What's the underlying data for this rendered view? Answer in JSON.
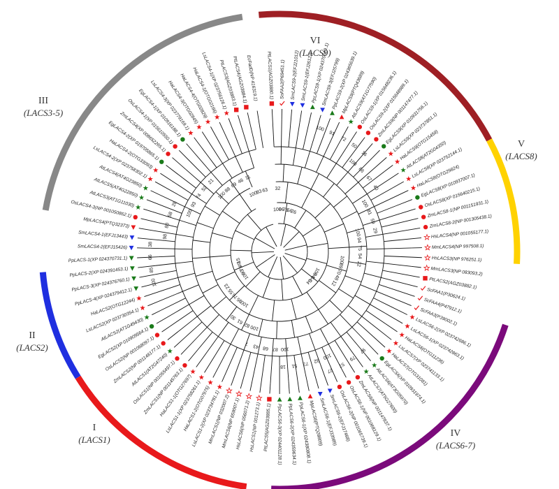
{
  "clades": [
    {
      "id": "I",
      "roman": "I",
      "name": "(LACS1)",
      "color": "#e8191b"
    },
    {
      "id": "II",
      "roman": "II",
      "name": "(LACS2)",
      "color": "#1f2fe0"
    },
    {
      "id": "III",
      "roman": "III",
      "name": "(LACS3-5)",
      "color": "#888888"
    },
    {
      "id": "IV",
      "roman": "IV",
      "name": "(LACS6-7)",
      "color": "#7b0a7b"
    },
    {
      "id": "V",
      "roman": "V",
      "name": "(LACS8)",
      "color": "#ffd200"
    },
    {
      "id": "VI",
      "roman": "VI",
      "name": "(LACS9)",
      "color": "#9e1f24"
    }
  ],
  "leaves": [
    {
      "label": "PtLACS1(AGZ03880.1)",
      "marker": "square",
      "color": "#e8191b"
    },
    {
      "label": "SoFAA2(P69451.1)",
      "marker": "check",
      "color": "#e8191b"
    },
    {
      "label": "SmLACS9-2(EFJ21012)",
      "marker": "triangle-down",
      "color": "#1f2fe0"
    },
    {
      "label": "SmLACS9-1(EFJ26122)",
      "marker": "triangle-down",
      "color": "#1f2fe0"
    },
    {
      "label": "PpLACS9-1(XP 024370619.1)",
      "marker": "triangle-up",
      "color": "#1a7a1a"
    },
    {
      "label": "SmLACS9-3(EFJ25799)",
      "marker": "triangle-down",
      "color": "#1f2fe0"
    },
    {
      "label": "PpLACS9-2(XP 024365639.1)",
      "marker": "triangle-up",
      "color": "#1a7a1a"
    },
    {
      "label": "MpLACS9(PTQ43689)",
      "marker": "triangle-up",
      "color": "#e8191b"
    },
    {
      "label": "AtLACS9(AT1G77590)",
      "marker": "star",
      "color": "#1a7a1a"
    },
    {
      "label": "OsLACS9-1(XP 015648236.1)",
      "marker": "circle",
      "color": "#e8191b"
    },
    {
      "label": "OsLACS9-2(XP 015648989.1)",
      "marker": "circle",
      "color": "#e8191b"
    },
    {
      "label": "ZmLACS9(NP 001147477.1)",
      "marker": "circle",
      "color": "#e8191b"
    },
    {
      "label": "EgLACS9(XP 010931756.1)",
      "marker": "circle",
      "color": "#1a7a1a"
    },
    {
      "label": "LsLACS9(XP 023737851.1)",
      "marker": "star",
      "color": "#e8191b"
    },
    {
      "label": "HaLACS9(OTG15459)",
      "marker": "star",
      "color": "#e8191b"
    },
    {
      "label": "AtLACS8(AT2G04350)",
      "marker": "star",
      "color": "#1a7a1a"
    },
    {
      "label": "LsLACS8(XP 023752144.1)",
      "marker": "star",
      "color": "#e8191b"
    },
    {
      "label": "HaLACS8(OTG29824)",
      "marker": "star",
      "color": "#e8191b"
    },
    {
      "label": "EgLACS8(XP 010937007.1)",
      "marker": "circle",
      "color": "#1a7a1a"
    },
    {
      "label": "OsLACS8(XP 015640215.1)",
      "marker": "circle",
      "color": "#e8191b"
    },
    {
      "label": "ZmLACS8-1(NP 001151931.1)",
      "marker": "circle",
      "color": "#e8191b"
    },
    {
      "label": "ZmLACS8-2(NP 001305438.1)",
      "marker": "circle",
      "color": "#e8191b"
    },
    {
      "label": "HsLACS4(NP 001055177.1)",
      "marker": "star-open",
      "color": "#e8191b"
    },
    {
      "label": "MmLACS4(NP 997508.1)",
      "marker": "star-open",
      "color": "#e8191b"
    },
    {
      "label": "HsLACS3(NP 976251.1)",
      "marker": "star-open",
      "color": "#e8191b"
    },
    {
      "label": "MmLACS3(NP 083093.2)",
      "marker": "star-open",
      "color": "#e8191b"
    },
    {
      "label": "PtLACS2(AGZ03882.1)",
      "marker": "square",
      "color": "#e8191b"
    },
    {
      "label": "ScFAA1(P30624.1)",
      "marker": "check",
      "color": "#e8191b"
    },
    {
      "label": "ScFAA4(P47912.1)",
      "marker": "check",
      "color": "#e8191b"
    },
    {
      "label": "ScFAA3(P39002.1)",
      "marker": "check",
      "color": "#e8191b"
    },
    {
      "label": "LsLACS6-2(XP 023742686.1)",
      "marker": "star",
      "color": "#e8191b"
    },
    {
      "label": "LsLACS6-1(XP 023742863.1)",
      "marker": "star",
      "color": "#e8191b"
    },
    {
      "label": "HaLACS6(OTG11236)",
      "marker": "star",
      "color": "#e8191b"
    },
    {
      "label": "LsLACS7(XP 023741133.1)",
      "marker": "star",
      "color": "#e8191b"
    },
    {
      "label": "HaLACS7(OTG31081)",
      "marker": "star",
      "color": "#e8191b"
    },
    {
      "label": "EgLACS6(XP 010931974.1)",
      "marker": "circle",
      "color": "#1a7a1a"
    },
    {
      "label": "AtLACS6(AT3G05970)",
      "marker": "star",
      "color": "#1a7a1a"
    },
    {
      "label": "AtLACS7(AT5G27600)",
      "marker": "star",
      "color": "#1a7a1a"
    },
    {
      "label": "ZmLACS6(NP 001147837.1)",
      "marker": "circle",
      "color": "#e8191b"
    },
    {
      "label": "OsLACS6-1(NP 001068129.1)",
      "marker": "circle",
      "color": "#e8191b"
    },
    {
      "label": "OsLACS6-2(NP 001065739.1)",
      "marker": "circle",
      "color": "#e8191b"
    },
    {
      "label": "SmLACS6-2(EFJ17468)",
      "marker": "triangle-down",
      "color": "#1f2fe0"
    },
    {
      "label": "SmLACS6-1(EFJ33989)",
      "marker": "triangle-down",
      "color": "#1f2fe0"
    },
    {
      "label": "MpLACS6(PTQ28809)",
      "marker": "triangle-up",
      "color": "#e8191b"
    },
    {
      "label": "PpLACS6-1(XP 024380808.1)",
      "marker": "triangle-up",
      "color": "#1a7a1a"
    },
    {
      "label": "PpLACS6-2(XP 024359634.1)",
      "marker": "triangle-up",
      "color": "#1a7a1a"
    },
    {
      "label": "PpLACS6-3(XP 024401128.1)",
      "marker": "triangle-up",
      "color": "#1a7a1a"
    },
    {
      "label": "PtLACS5(AGZ03885.1)",
      "marker": "square",
      "color": "#e8191b"
    },
    {
      "label": "HsLACS1(NP 001273.1)",
      "marker": "star-open",
      "color": "#e8191b"
    },
    {
      "label": "HsLACS6(NP 056071.2)",
      "marker": "star-open",
      "color": "#e8191b"
    },
    {
      "label": "MmLACS6(NP 659007.1)",
      "marker": "star-open",
      "color": "#e8191b"
    },
    {
      "label": "MmLACS1(NP 032007.2)",
      "marker": "star-open",
      "color": "#e8191b"
    },
    {
      "label": "LsLACS1-2(XP 023734781.1)",
      "marker": "star",
      "color": "#e8191b"
    },
    {
      "label": "HaLACS1-2(OTG07975)",
      "marker": "star",
      "color": "#e8191b"
    },
    {
      "label": "LsLACS1-1(XP 023758261.1)",
      "marker": "star",
      "color": "#e8191b"
    },
    {
      "label": "HaLACS1-1(OTG27697)",
      "marker": "star",
      "color": "#e8191b"
    },
    {
      "label": "ZmLACS1(NP 001145763.1)",
      "marker": "circle",
      "color": "#e8191b"
    },
    {
      "label": "OsLACS1(NP 001055497.1)",
      "marker": "circle",
      "color": "#e8191b"
    },
    {
      "label": "AtLACS1(AT2G47240)",
      "marker": "star",
      "color": "#1a7a1a"
    },
    {
      "label": "ZmLACS2(NP 001148177.1)",
      "marker": "circle",
      "color": "#e8191b"
    },
    {
      "label": "OsLACS2(NP 001068097.1)",
      "marker": "circle",
      "color": "#e8191b"
    },
    {
      "label": "EgLACS2(XP 010909564.1)",
      "marker": "circle",
      "color": "#1a7a1a"
    },
    {
      "label": "AtLACS2(AT1G49430)",
      "marker": "star",
      "color": "#1a7a1a"
    },
    {
      "label": "LsLACS2(XP 023730354.1)",
      "marker": "star",
      "color": "#e8191b"
    },
    {
      "label": "HaLACS2(OTG12244)",
      "marker": "star",
      "color": "#e8191b"
    },
    {
      "label": "PpLACS-4(XP 024379412.1)",
      "marker": "triangle-down",
      "color": "#1a7a1a"
    },
    {
      "label": "PpLACS-3(XP 024376760.1)",
      "marker": "triangle-down",
      "color": "#1a7a1a"
    },
    {
      "label": "PpLACS-2(XP 024391453.1)",
      "marker": "triangle-down",
      "color": "#1a7a1a"
    },
    {
      "label": "PpLACS-1(XP 024370731.1)",
      "marker": "triangle-down",
      "color": "#1a7a1a"
    },
    {
      "label": "SmLACS4-2(EFJ15426)",
      "marker": "triangle-down",
      "color": "#1f2fe0"
    },
    {
      "label": "SmLACS4-1(EFJ13443)",
      "marker": "triangle-down",
      "color": "#1f2fe0"
    },
    {
      "label": "MpLACS4(PTQ32373)",
      "marker": "triangle-down",
      "color": "#e8191b"
    },
    {
      "label": "OsLACS4-3(NP 001050862.1)",
      "marker": "circle",
      "color": "#e8191b"
    },
    {
      "label": "AtLACS3(AT1G11030)",
      "marker": "star",
      "color": "#1a7a1a"
    },
    {
      "label": "AtLACS5(AT4G22850)",
      "marker": "star",
      "color": "#1a7a1a"
    },
    {
      "label": "AtLACS4(AT4G23850)",
      "marker": "star",
      "color": "#1a7a1a"
    },
    {
      "label": "LsLACS4-2(XP 023758302.1)",
      "marker": "star",
      "color": "#e8191b"
    },
    {
      "label": "HaLACS4-2(OTG33093)",
      "marker": "star",
      "color": "#e8191b"
    },
    {
      "label": "EgLACS4-2(XP 019705865.1)",
      "marker": "circle",
      "color": "#1a7a1a"
    },
    {
      "label": "ZmLACS4(XP 008652265.1)",
      "marker": "circle",
      "color": "#e8191b"
    },
    {
      "label": "OsLACS4-1(XP 015610550.1)",
      "marker": "circle",
      "color": "#e8191b"
    },
    {
      "label": "EgLACS4-1(XP 010916188.1)",
      "marker": "circle",
      "color": "#1a7a1a"
    },
    {
      "label": "LsLACS4-3(XP 023779169.1)",
      "marker": "star",
      "color": "#e8191b"
    },
    {
      "label": "HaLACS4-3(OTG02845)",
      "marker": "star",
      "color": "#e8191b"
    },
    {
      "label": "HaLACS4-4(OTG02829)",
      "marker": "star",
      "color": "#e8191b"
    },
    {
      "label": "HaLACS4-1(OTG02166)",
      "marker": "star",
      "color": "#e8191b"
    },
    {
      "label": "LsLACS4-1(XP 023756126.1)",
      "marker": "star",
      "color": "#e8191b"
    },
    {
      "label": "PtLACS3(AGZ03883.1)",
      "marker": "square",
      "color": "#e8191b"
    },
    {
      "label": "PtLACS4(AGZ03884.1)",
      "marker": "square",
      "color": "#e8191b"
    },
    {
      "label": "EcFadD(NP 416319.1)",
      "marker": "none",
      "color": "#000000"
    }
  ],
  "bootstrap": [
    "100",
    "100",
    "100",
    "100",
    "100",
    "100",
    "100",
    "100",
    "100",
    "100",
    "100",
    "100",
    "100",
    "100",
    "100",
    "100",
    "98",
    "97",
    "96",
    "95",
    "94",
    "93",
    "92",
    "91",
    "90",
    "89",
    "88",
    "87",
    "86",
    "85",
    "84",
    "83",
    "82",
    "81",
    "80",
    "79",
    "78",
    "76",
    "75",
    "74",
    "73",
    "72",
    "71",
    "70",
    "69",
    "68",
    "67",
    "66",
    "64",
    "63",
    "61",
    "59",
    "58",
    "57",
    "56",
    "55",
    "54",
    "52",
    "51",
    "50",
    "49",
    "48",
    "46",
    "43",
    "40",
    "38",
    "34",
    "32",
    "30",
    "29",
    "28",
    "27",
    "26",
    "23",
    "22",
    "21",
    "18",
    "16",
    "15",
    "12",
    "11",
    "7"
  ]
}
